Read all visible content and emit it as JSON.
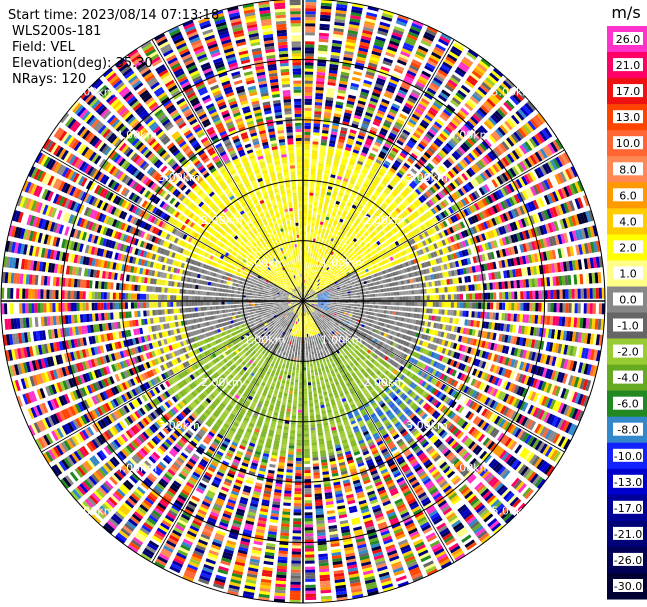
{
  "header": {
    "start_time": "Start time: 2023/08/14 07:13:18",
    "instrument": "WLS200s-181",
    "field": "Field: VEL",
    "elevation": "Elevation(deg): 35.30",
    "nrays": "NRays: 120"
  },
  "chart_data": {
    "type": "heatmap",
    "projection": "polar-ppi",
    "field": "VEL",
    "units": "m/s",
    "nrays": 120,
    "elevation_deg": 35.3,
    "range_rings_km": [
      1,
      2,
      3,
      4,
      5
    ],
    "range_ring_labels": [
      "1.00km",
      "2.00km",
      "3.00km",
      "4.00km",
      "5.00km"
    ],
    "max_range_km": 5.0,
    "colorbar": {
      "label": "m/s",
      "ticks": [
        "26.0",
        "21.0",
        "17.0",
        "13.0",
        "10.0",
        "8.0",
        "6.0",
        "4.0",
        "2.0",
        "1.0",
        "0.0",
        "-1.0",
        "-2.0",
        "-4.0",
        "-6.0",
        "-8.0",
        "-10.0",
        "-13.0",
        "-17.0",
        "-21.0",
        "-26.0",
        "-30.0"
      ],
      "colors": [
        "#ff33cc",
        "#ff0066",
        "#ee1111",
        "#ff4400",
        "#ff6633",
        "#ff8855",
        "#ff9900",
        "#ffcc00",
        "#ffff00",
        "#ffff88",
        "#888888",
        "#666666",
        "#99cc33",
        "#66aa22",
        "#228822",
        "#3388cc",
        "#1122ff",
        "#0000cc",
        "#000099",
        "#000077",
        "#000055",
        "#000033"
      ]
    },
    "zones": [
      {
        "description_ref": "near-range",
        "r_km": [
          0.0,
          1.0
        ],
        "pattern": "yellow north and south lobes, grey west and east, small blue patch east"
      },
      {
        "description_ref": "mid-range",
        "r_km": [
          1.0,
          2.0
        ],
        "pattern": "yellow north sector, grey west/east, green south"
      },
      {
        "description_ref": "outer-coherent",
        "r_km": [
          2.0,
          2.6
        ],
        "pattern": "yellow north, green/grey south, blue patches southeast"
      },
      {
        "description_ref": "noise",
        "r_km": [
          2.6,
          5.0
        ],
        "pattern": "random colors (noise)"
      }
    ]
  }
}
